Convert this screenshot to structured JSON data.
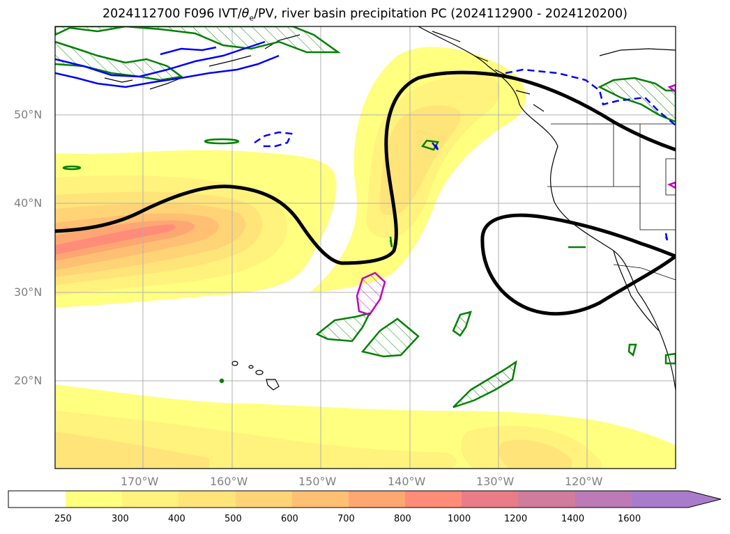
{
  "title": {
    "prefix": "2024112700 F096 IVT/",
    "theta": "θ",
    "theta_sub": "e",
    "suffix": "/PV, river basin precipitation PC (2024112900 - 2024120200)"
  },
  "axes": {
    "lat_labels": [
      "50°N",
      "40°N",
      "30°N",
      "20°N"
    ],
    "lon_labels": [
      "170°W",
      "160°W",
      "150°W",
      "140°W",
      "130°W",
      "120°W"
    ]
  },
  "colorbar": {
    "levels": [
      "250",
      "300",
      "400",
      "500",
      "600",
      "700",
      "800",
      "1000",
      "1200",
      "1400",
      "1600"
    ],
    "colors": [
      "#ffffff",
      "#ffff80",
      "#fff27d",
      "#ffe47a",
      "#ffd477",
      "#ffc074",
      "#ffa773",
      "#ff8c78",
      "#e97c86",
      "#d07c9c",
      "#bc7ab7",
      "#a87cca"
    ]
  },
  "contour_colors": {
    "theta_e_line": "#000000",
    "pv_positive": "#008000",
    "pv_negative": "#0000ff",
    "precip": "#c000c0",
    "grid": "#b0b0b0"
  }
}
